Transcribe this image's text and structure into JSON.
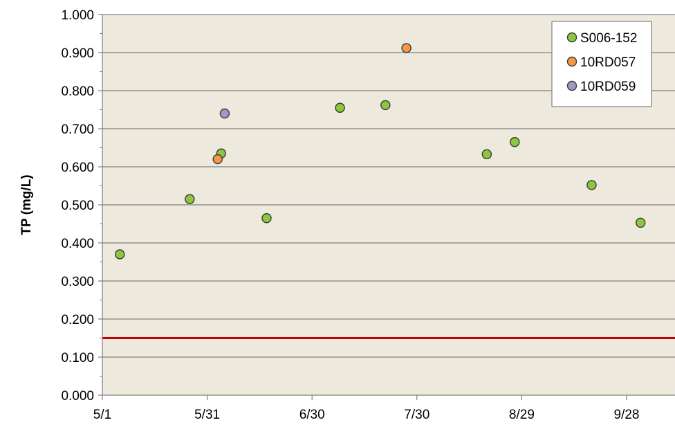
{
  "chart_data": {
    "type": "scatter",
    "title": "",
    "xlabel": "",
    "ylabel": "TP (mg/L)",
    "xlim": [
      "5/1",
      "10/7"
    ],
    "ylim": [
      0,
      1.0
    ],
    "x_ticks": [
      "5/1",
      "5/31",
      "6/30",
      "7/30",
      "8/29",
      "9/28"
    ],
    "y_ticks": [
      "0.000",
      "0.100",
      "0.200",
      "0.300",
      "0.400",
      "0.500",
      "0.600",
      "0.700",
      "0.800",
      "0.900",
      "1.000"
    ],
    "grid": true,
    "legend_position": "top-right",
    "reference_line": {
      "y": 0.15,
      "color": "#c00000"
    },
    "series": [
      {
        "name": "S006-152",
        "color": "#8dc63f",
        "points": [
          {
            "x": "5/6",
            "y": 0.37
          },
          {
            "x": "5/26",
            "y": 0.515
          },
          {
            "x": "6/4",
            "y": 0.635
          },
          {
            "x": "6/17",
            "y": 0.465
          },
          {
            "x": "7/8",
            "y": 0.755
          },
          {
            "x": "7/21",
            "y": 0.762
          },
          {
            "x": "8/19",
            "y": 0.633
          },
          {
            "x": "8/27",
            "y": 0.665
          },
          {
            "x": "9/18",
            "y": 0.552
          },
          {
            "x": "10/2",
            "y": 0.453
          }
        ]
      },
      {
        "name": "10RD057",
        "color": "#f79646",
        "points": [
          {
            "x": "6/3",
            "y": 0.62
          },
          {
            "x": "7/27",
            "y": 0.912
          }
        ]
      },
      {
        "name": "10RD059",
        "color": "#a597c3",
        "points": [
          {
            "x": "6/5",
            "y": 0.74
          }
        ]
      }
    ]
  }
}
